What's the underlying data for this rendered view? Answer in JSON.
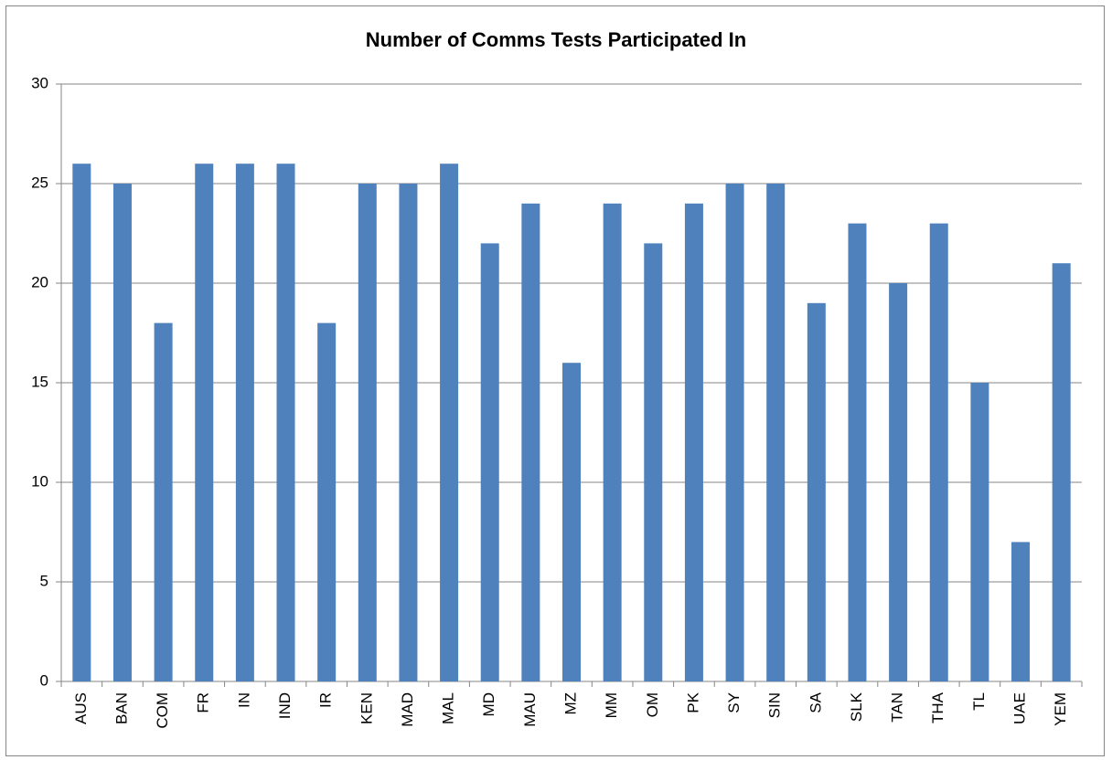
{
  "chart_data": {
    "type": "bar",
    "title": "Number of Comms Tests Participated In",
    "categories": [
      "AUS",
      "BAN",
      "COM",
      "FR",
      "IN",
      "IND",
      "IR",
      "KEN",
      "MAD",
      "MAL",
      "MD",
      "MAU",
      "MZ",
      "MM",
      "OM",
      "PK",
      "SY",
      "SIN",
      "SA",
      "SLK",
      "TAN",
      "THA",
      "TL",
      "UAE",
      "YEM"
    ],
    "values": [
      26,
      25,
      18,
      26,
      26,
      26,
      18,
      25,
      25,
      26,
      22,
      24,
      16,
      24,
      22,
      24,
      25,
      25,
      19,
      23,
      20,
      23,
      15,
      7,
      21
    ],
    "color": "#4f81bd",
    "ylim": [
      0,
      30
    ],
    "yticks": [
      0,
      5,
      10,
      15,
      20,
      25,
      30
    ],
    "grid": true
  }
}
